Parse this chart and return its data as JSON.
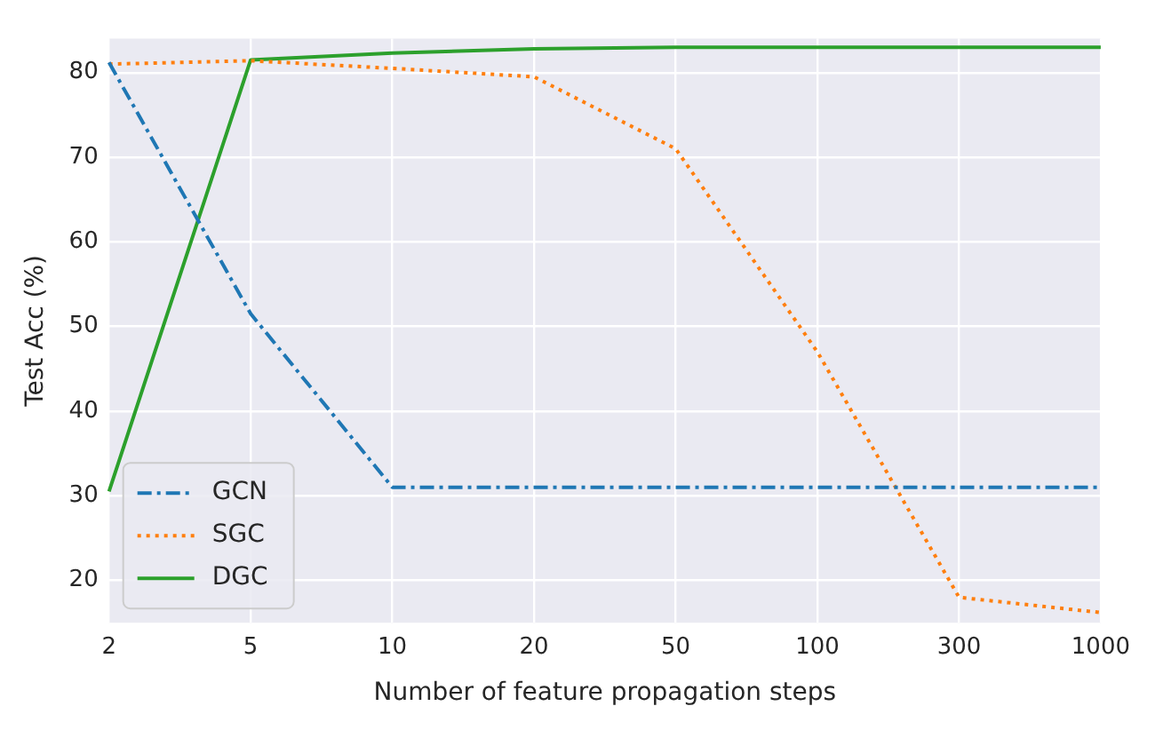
{
  "chart_data": {
    "type": "line",
    "xlabel": "Number of feature propagation steps",
    "ylabel": "Test Acc (%)",
    "categories": [
      "2",
      "5",
      "10",
      "20",
      "50",
      "100",
      "300",
      "1000"
    ],
    "series": [
      {
        "name": "GCN",
        "color": "#1f77b4",
        "line_style": "dashdot",
        "values": [
          81.2,
          51.5,
          31,
          31,
          31,
          31,
          31,
          31
        ]
      },
      {
        "name": "SGC",
        "color": "#ff7f0e",
        "line_style": "dotted",
        "values": [
          81,
          81.4,
          80.5,
          79.5,
          71,
          47,
          18,
          16.2
        ]
      },
      {
        "name": "DGC",
        "color": "#2ca02c",
        "line_style": "solid",
        "values": [
          30.5,
          81.5,
          82.3,
          82.8,
          83,
          83,
          83,
          83
        ]
      }
    ],
    "ylim": [
      15,
      84
    ],
    "yticks": [
      20,
      30,
      40,
      50,
      60,
      70,
      80
    ],
    "grid": true,
    "legend": "bottom left",
    "marker": "none"
  }
}
